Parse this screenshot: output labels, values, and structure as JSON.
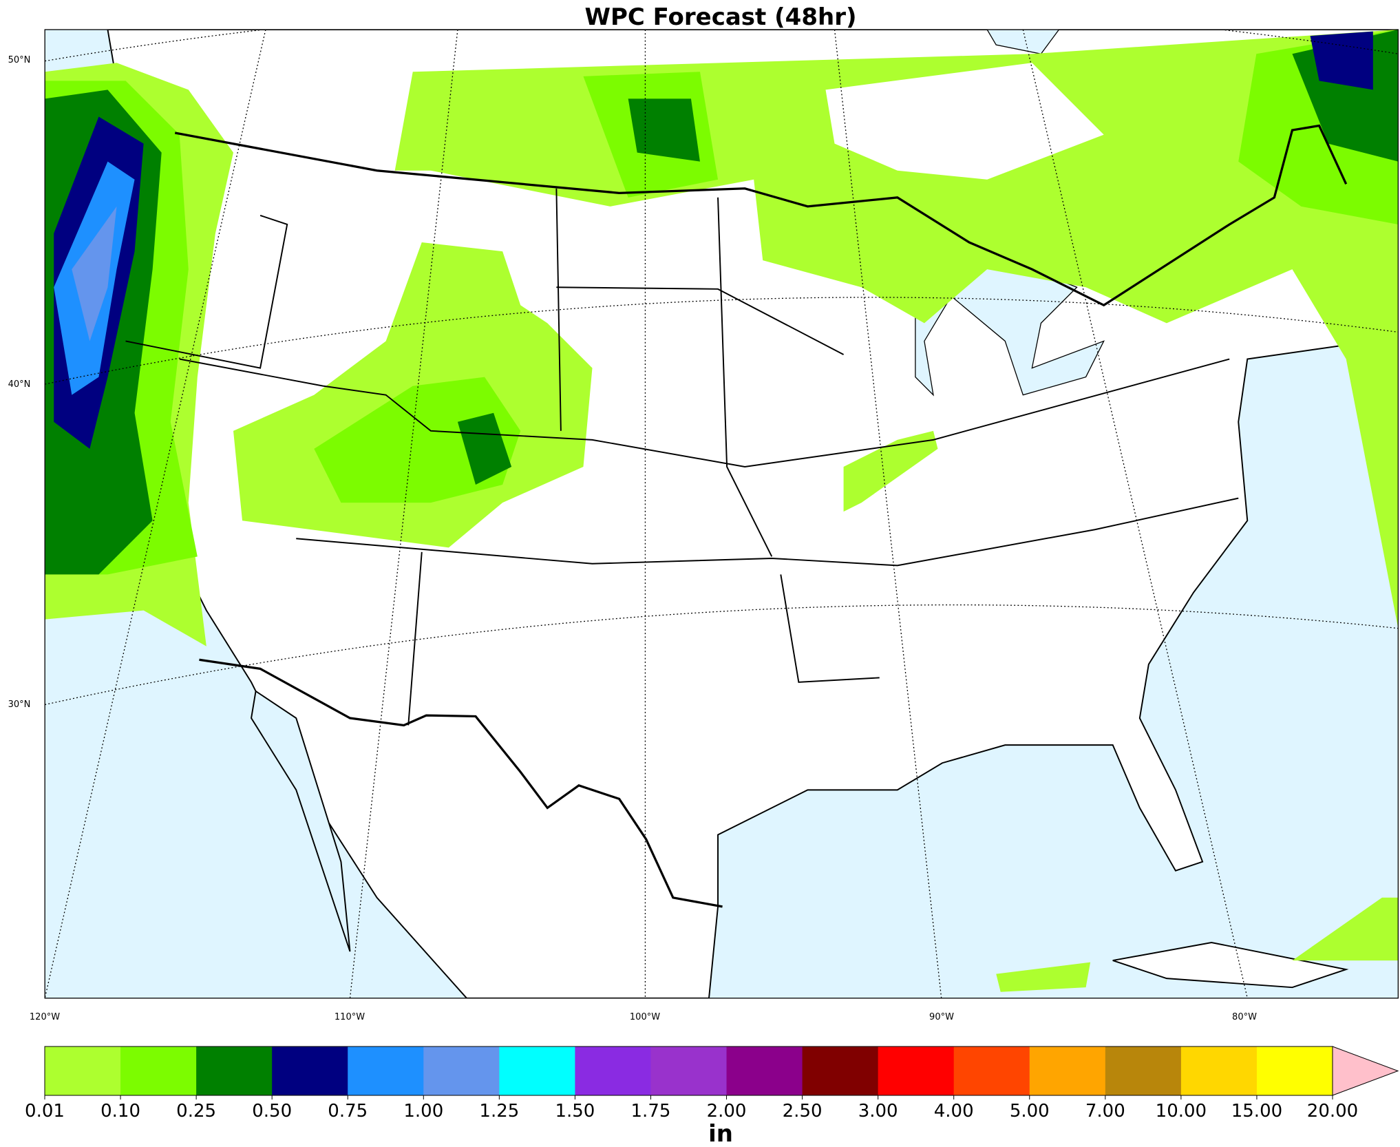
{
  "title": "WPC Forecast (48hr)",
  "latitude_labels": [
    "50°N",
    "40°N",
    "30°N"
  ],
  "longitude_labels": [
    "120°W",
    "110°W",
    "100°W",
    "90°W",
    "80°W"
  ],
  "colorbar": {
    "label": "in",
    "ticks": [
      "0.01",
      "0.10",
      "0.25",
      "0.50",
      "0.75",
      "1.00",
      "1.25",
      "1.50",
      "1.75",
      "2.00",
      "2.50",
      "3.00",
      "4.00",
      "5.00",
      "7.00",
      "10.00",
      "15.00",
      "20.00"
    ],
    "colors": [
      "#adff2f",
      "#7cfc00",
      "#008000",
      "#000080",
      "#1e90ff",
      "#6495ed",
      "#00ffff",
      "#8a2be2",
      "#9932cc",
      "#8b008b",
      "#800000",
      "#ff0000",
      "#ff4500",
      "#ffa500",
      "#b8860b",
      "#ffd700",
      "#ffff00"
    ],
    "extend_color": "#ffc0cb"
  }
}
